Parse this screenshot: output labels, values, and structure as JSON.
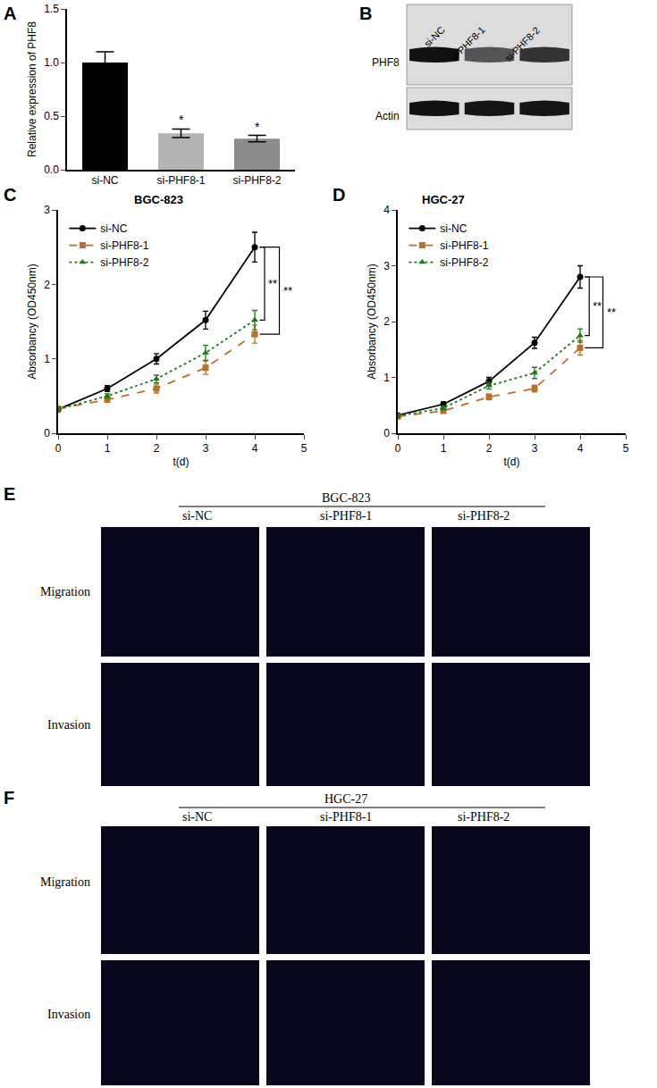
{
  "chart_data": [
    {
      "panel": "A",
      "type": "bar",
      "categories": [
        "si-NC",
        "si-PHF8-1",
        "si-PHF8-2"
      ],
      "values": [
        1.0,
        0.34,
        0.29
      ],
      "errors": [
        0.1,
        0.04,
        0.03
      ],
      "colors": [
        "#000000",
        "#b3b3b3",
        "#8c8c8c"
      ],
      "y_label": "Relative expression of PHF8",
      "ylim": [
        0,
        1.5
      ],
      "yticks": [
        {
          "value": 0,
          "label": "0.0"
        },
        {
          "value": 0.5,
          "label": "0.5"
        },
        {
          "value": 1,
          "label": "1.0"
        },
        {
          "value": 1.5,
          "label": "1.5"
        }
      ],
      "annotations": [
        {
          "category": "si-PHF8-1",
          "text": "*"
        },
        {
          "category": "si-PHF8-2",
          "text": "*"
        }
      ]
    },
    {
      "panel": "C",
      "type": "line",
      "title": "BGC-823",
      "x": [
        0,
        1,
        2,
        3,
        4
      ],
      "x_label": "t(d)",
      "y_label": "Absorbancy (OD450nm)",
      "xlim": [
        0,
        5
      ],
      "xticks": [
        0,
        1,
        2,
        3,
        4,
        5
      ],
      "ylim": [
        0,
        3
      ],
      "yticks": [
        0,
        1,
        2,
        3
      ],
      "legend": "upper left",
      "series": [
        {
          "name": "si-NC",
          "color": "#000000",
          "marker": "circle",
          "line_style": "solid",
          "values": [
            0.32,
            0.6,
            1.0,
            1.52,
            2.5
          ],
          "errors": [
            0.03,
            0.04,
            0.07,
            0.12,
            0.2
          ]
        },
        {
          "name": "si-PHF8-1",
          "color": "#b8702a",
          "marker": "square",
          "line_style": "dash",
          "values": [
            0.33,
            0.45,
            0.6,
            0.88,
            1.33
          ],
          "errors": [
            0.03,
            0.03,
            0.06,
            0.09,
            0.12
          ]
        },
        {
          "name": "si-PHF8-2",
          "color": "#1e7a1e",
          "marker": "triangle-up",
          "line_style": "dot",
          "values": [
            0.32,
            0.5,
            0.73,
            1.08,
            1.52
          ],
          "errors": [
            0.03,
            0.03,
            0.05,
            0.1,
            0.13
          ]
        }
      ],
      "annotations": [
        {
          "x": 4,
          "from": "si-NC",
          "to": "si-PHF8-2",
          "text": "**"
        },
        {
          "x": 4,
          "from": "si-NC",
          "to": "si-PHF8-1",
          "text": "**"
        }
      ]
    },
    {
      "panel": "D",
      "type": "line",
      "title": "HGC-27",
      "x": [
        0,
        1,
        2,
        3,
        4
      ],
      "x_label": "t(d)",
      "y_label": "Absorbancy (OD450nm)",
      "xlim": [
        0,
        5
      ],
      "xticks": [
        0,
        1,
        2,
        3,
        4,
        5
      ],
      "ylim": [
        0,
        4
      ],
      "yticks": [
        0,
        1,
        2,
        3,
        4
      ],
      "legend": "upper left",
      "series": [
        {
          "name": "si-NC",
          "color": "#000000",
          "marker": "circle",
          "line_style": "solid",
          "values": [
            0.32,
            0.52,
            0.93,
            1.62,
            2.8
          ],
          "errors": [
            0.03,
            0.04,
            0.07,
            0.1,
            0.2
          ]
        },
        {
          "name": "si-PHF8-1",
          "color": "#b8702a",
          "marker": "square",
          "line_style": "dash",
          "values": [
            0.3,
            0.4,
            0.65,
            0.8,
            1.53
          ],
          "errors": [
            0.03,
            0.03,
            0.05,
            0.06,
            0.13
          ]
        },
        {
          "name": "si-PHF8-2",
          "color": "#1e7a1e",
          "marker": "triangle-up",
          "line_style": "dot",
          "values": [
            0.31,
            0.45,
            0.85,
            1.08,
            1.75
          ],
          "errors": [
            0.03,
            0.03,
            0.06,
            0.1,
            0.12
          ]
        }
      ],
      "annotations": [
        {
          "x": 4,
          "from": "si-NC",
          "to": "si-PHF8-2",
          "text": "**"
        },
        {
          "x": 4,
          "from": "si-NC",
          "to": "si-PHF8-1",
          "text": "**"
        }
      ]
    }
  ],
  "blot": {
    "panel": "B",
    "lanes": [
      "si-NC",
      "si-PHF8-1",
      "si-PHF8-2"
    ],
    "rows": [
      "PHF8",
      "Actin"
    ]
  },
  "image_panels": [
    {
      "panel": "E",
      "title": "BGC-823",
      "columns": [
        "si-NC",
        "si-PHF8-1",
        "si-PHF8-2"
      ],
      "rows": [
        "Migration",
        "Invasion"
      ]
    },
    {
      "panel": "F",
      "title": "HGC-27",
      "columns": [
        "si-NC",
        "si-PHF8-1",
        "si-PHF8-2"
      ],
      "rows": [
        "Migration",
        "Invasion"
      ]
    }
  ]
}
